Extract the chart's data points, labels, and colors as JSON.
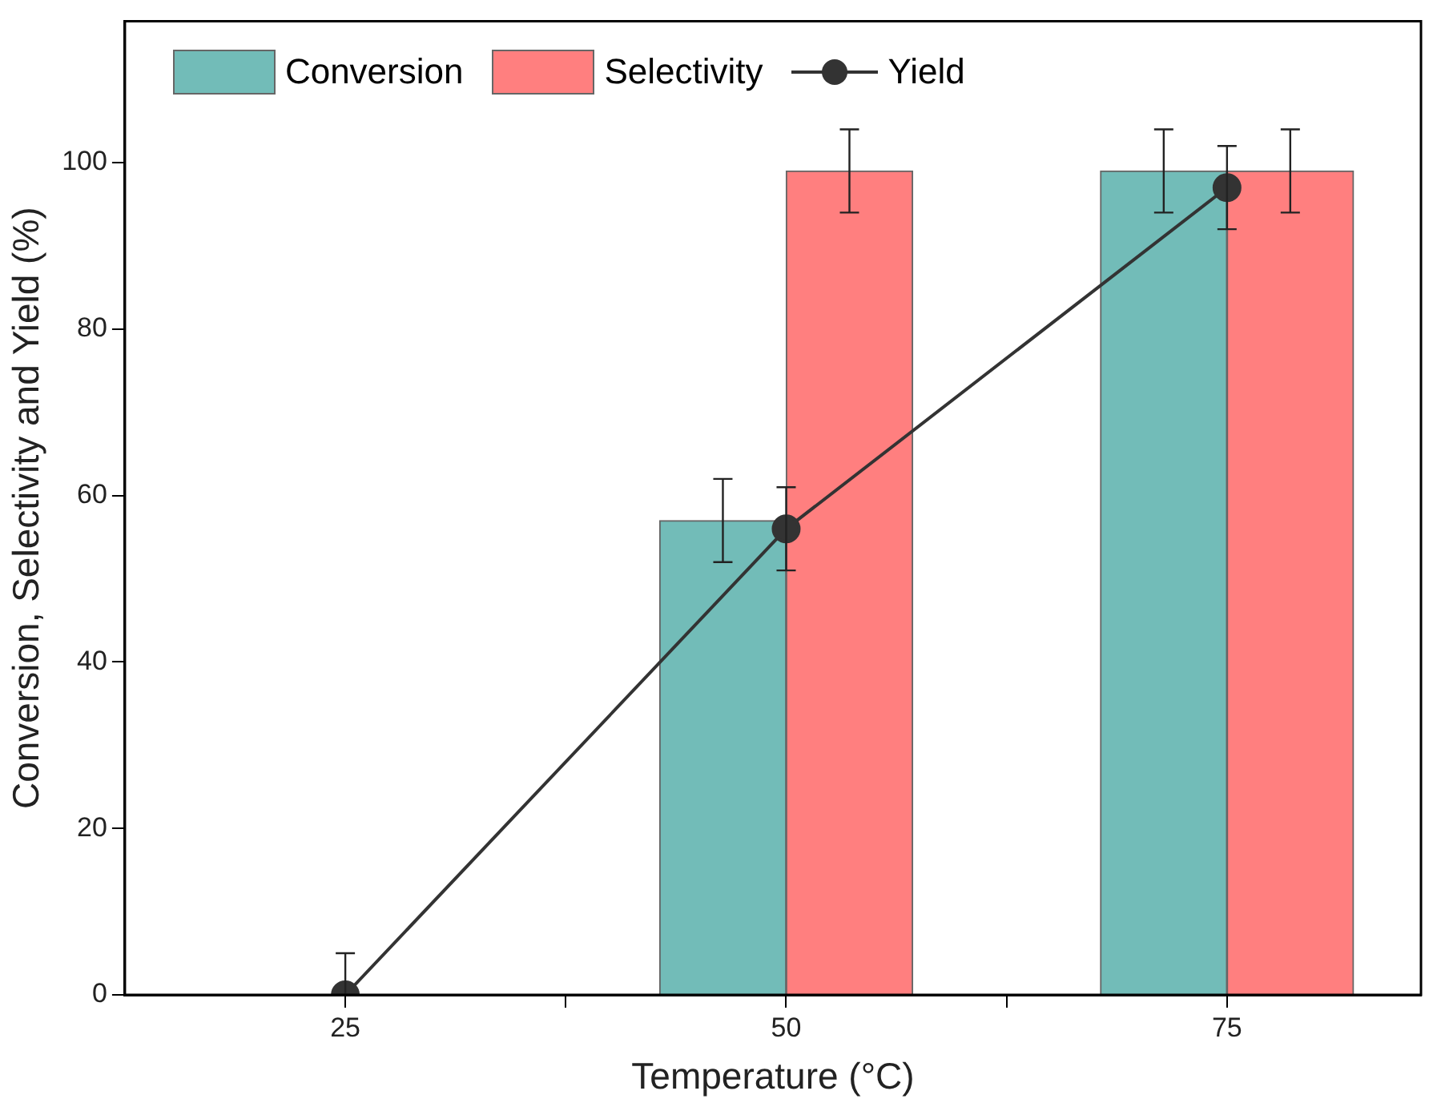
{
  "chart_data": {
    "type": "bar",
    "xlabel": "Temperature (°C)",
    "ylabel": "Conversion, Selectivity and Yield (%)",
    "x": [
      25,
      50,
      75
    ],
    "xlim": [
      12.5,
      86
    ],
    "xticks": [
      25,
      {
        "value": 37.5,
        "label": null
      },
      50,
      {
        "value": 62.5,
        "label": null
      },
      75
    ],
    "ylim": [
      0,
      117
    ],
    "yticks": [
      0,
      20,
      40,
      60,
      80,
      100
    ],
    "grid": false,
    "legend": "top left",
    "marker": "circle",
    "series": [
      {
        "name": "Conversion",
        "color": "#72bcb8",
        "values": [
          null,
          57,
          99
        ],
        "errors": [
          null,
          5,
          5
        ]
      },
      {
        "name": "Selectivity",
        "color": "#ff7f7f",
        "values": [
          null,
          99,
          99
        ],
        "errors": [
          null,
          5,
          5
        ]
      },
      {
        "name": "Yield",
        "type": "line",
        "color": "#333333",
        "values": [
          0,
          56,
          97
        ],
        "errors": [
          [
            0,
            5
          ],
          5,
          5
        ]
      }
    ]
  }
}
